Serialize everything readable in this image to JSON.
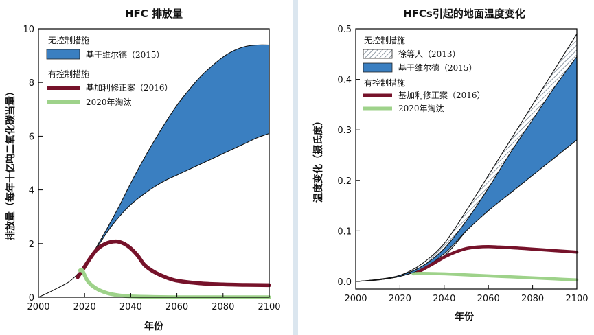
{
  "chart_data": [
    {
      "type": "area",
      "title": "HFC 排放量",
      "xlabel": "年份",
      "ylabel": "排放量（每年十亿吨二氧化碳当量）",
      "xlim": [
        2000,
        2100
      ],
      "ylim": [
        0,
        10
      ],
      "xticks": [
        "2000",
        "2020",
        "2040",
        "2060",
        "2080",
        "2100"
      ],
      "yticks": [
        "0",
        "2",
        "4",
        "6",
        "8",
        "10"
      ],
      "grid": false,
      "legend_placement": "top-left",
      "legend": {
        "group1": "无控制措施",
        "group2": "有控制措施",
        "entries": [
          "基于维尔德（2015）",
          "基加利修正案（2016）",
          "2020年淘汰"
        ]
      },
      "colors": {
        "band": "#3a7fc1",
        "kigali": "#76122a",
        "phaseout": "#9ed28a"
      },
      "series": [
        {
          "name": "基于维尔德（2015）",
          "kind": "band",
          "x": [
            2000,
            2005,
            2010,
            2013,
            2016,
            2019,
            2022,
            2025,
            2030,
            2035,
            2040,
            2045,
            2050,
            2055,
            2060,
            2065,
            2070,
            2075,
            2080,
            2085,
            2090,
            2095,
            2100
          ],
          "upper": [
            0,
            0.2,
            0.42,
            0.56,
            0.78,
            1.05,
            1.4,
            1.85,
            2.6,
            3.4,
            4.25,
            5.05,
            5.8,
            6.5,
            7.15,
            7.7,
            8.2,
            8.6,
            8.95,
            9.2,
            9.35,
            9.4,
            9.4
          ],
          "lower": [
            0,
            0.2,
            0.42,
            0.56,
            0.78,
            1.05,
            1.4,
            1.8,
            2.45,
            3.0,
            3.45,
            3.8,
            4.1,
            4.35,
            4.55,
            4.75,
            4.95,
            5.15,
            5.35,
            5.55,
            5.75,
            5.95,
            6.1
          ]
        },
        {
          "name": "基加利修正案（2016）",
          "kind": "line",
          "x": [
            2017,
            2019,
            2022,
            2025,
            2028,
            2031,
            2034,
            2037,
            2040,
            2043,
            2046,
            2050,
            2055,
            2060,
            2070,
            2080,
            2090,
            2100
          ],
          "y": [
            0.75,
            1.0,
            1.4,
            1.75,
            1.95,
            2.05,
            2.08,
            2.0,
            1.82,
            1.55,
            1.2,
            0.95,
            0.75,
            0.62,
            0.52,
            0.48,
            0.46,
            0.45
          ]
        },
        {
          "name": "2020年淘汰",
          "kind": "line",
          "x": [
            2018,
            2019,
            2021,
            2023,
            2026,
            2030,
            2035,
            2040,
            2050,
            2060,
            2080,
            2100
          ],
          "y": [
            1.0,
            1.0,
            0.65,
            0.45,
            0.28,
            0.15,
            0.07,
            0.03,
            0.01,
            0,
            0,
            0
          ]
        }
      ]
    },
    {
      "type": "area",
      "title": "HFCs引起的地面温度变化",
      "xlabel": "年份",
      "ylabel": "温度变化（摄氏度）",
      "xlim": [
        2000,
        2100
      ],
      "ylim": [
        -0.015,
        0.5
      ],
      "xticks": [
        "2000",
        "2020",
        "2040",
        "2060",
        "2080",
        "2100"
      ],
      "yticks": [
        "0.0",
        "0.1",
        "0.2",
        "0.3",
        "0.4",
        "0.5"
      ],
      "grid": false,
      "legend_placement": "top-left",
      "legend": {
        "group1": "无控制措施",
        "group2": "有控制措施",
        "entries": [
          "徐等人（2013）",
          "基于维尔德（2015）",
          "基加利修正案（2016）",
          "2020年淘汰"
        ]
      },
      "colors": {
        "band": "#3a7fc1",
        "hatch": "#5a6a7a",
        "kigali": "#76122a",
        "phaseout": "#9ed28a"
      },
      "series": [
        {
          "name": "徐等人（2013）",
          "kind": "hatched-band",
          "x": [
            2000,
            2010,
            2020,
            2030,
            2040,
            2050,
            2060,
            2070,
            2080,
            2090,
            2100
          ],
          "upper": [
            0,
            0.004,
            0.012,
            0.035,
            0.075,
            0.14,
            0.21,
            0.28,
            0.35,
            0.42,
            0.49
          ],
          "lower": [
            0,
            0.003,
            0.01,
            0.025,
            0.05,
            0.1,
            0.15,
            0.205,
            0.255,
            0.305,
            0.36
          ]
        },
        {
          "name": "基于维尔德（2015）",
          "kind": "band",
          "x": [
            2000,
            2010,
            2020,
            2030,
            2040,
            2050,
            2060,
            2070,
            2080,
            2090,
            2100
          ],
          "upper": [
            0,
            0.004,
            0.012,
            0.03,
            0.065,
            0.12,
            0.185,
            0.255,
            0.32,
            0.385,
            0.445
          ],
          "lower": [
            0,
            0.003,
            0.01,
            0.025,
            0.055,
            0.1,
            0.14,
            0.175,
            0.21,
            0.245,
            0.28
          ]
        },
        {
          "name": "基加利修正案（2016）",
          "kind": "line",
          "x": [
            2028,
            2035,
            2040,
            2045,
            2050,
            2055,
            2060,
            2065,
            2070,
            2080,
            2090,
            2100
          ],
          "y": [
            0.018,
            0.035,
            0.048,
            0.058,
            0.065,
            0.068,
            0.069,
            0.068,
            0.067,
            0.064,
            0.061,
            0.058
          ]
        },
        {
          "name": "2020年淘汰",
          "kind": "line",
          "x": [
            2026,
            2030,
            2040,
            2050,
            2060,
            2070,
            2080,
            2090,
            2100
          ],
          "y": [
            0.015,
            0.016,
            0.015,
            0.013,
            0.011,
            0.009,
            0.007,
            0.005,
            0.003
          ]
        }
      ]
    }
  ]
}
